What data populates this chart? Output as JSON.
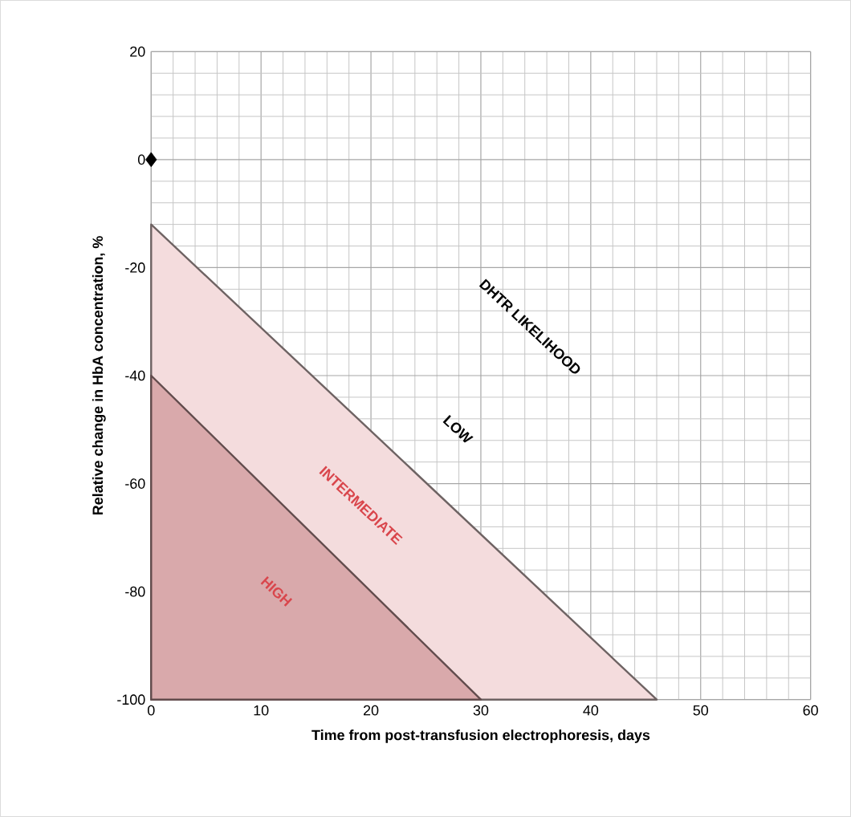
{
  "chart_data": {
    "type": "area",
    "xlabel": "Time from post-transfusion electrophoresis, days",
    "ylabel": "Relative change in HbA concentration, %",
    "xlim": [
      0,
      60
    ],
    "ylim": [
      -100,
      20
    ],
    "xticks": [
      0,
      10,
      20,
      30,
      40,
      50,
      60
    ],
    "yticks": [
      -100,
      -80,
      -60,
      -40,
      -20,
      0,
      20
    ],
    "grid": true,
    "series": [
      {
        "color": "#f4dcdd",
        "x": [
          0,
          46
        ],
        "values": [
          -12,
          -100
        ]
      },
      {
        "color": "#d9a9ab",
        "x": [
          0,
          30
        ],
        "values": [
          -40,
          -100
        ]
      },
      {
        "type": "scatter",
        "color": "#000000",
        "marker": "diamond",
        "x": [
          0
        ],
        "values": [
          0
        ]
      }
    ],
    "annotations": [
      "DHTR LIKELIHOOD",
      "LOW",
      "INTERMEDIATE",
      "HIGH"
    ]
  }
}
